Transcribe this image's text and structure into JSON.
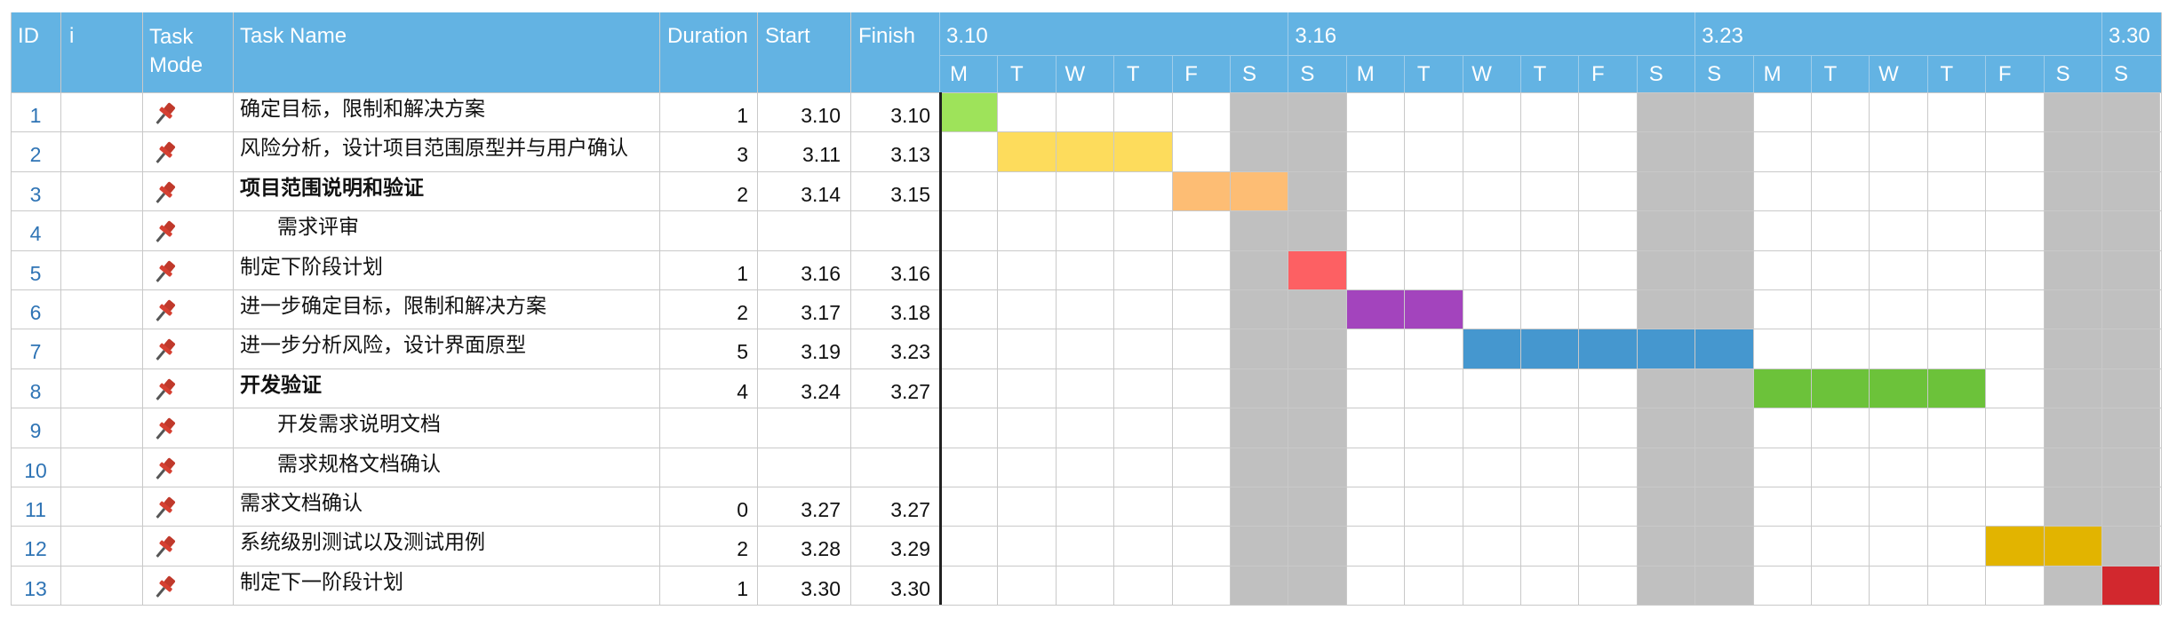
{
  "columns": {
    "id": "ID",
    "info": "i",
    "mode": "Task\nMode",
    "name": "Task Name",
    "duration": "Duration",
    "start": "Start",
    "finish": "Finish"
  },
  "weeks": [
    "3.10",
    "3.16",
    "3.23",
    "3.30"
  ],
  "days": [
    "M",
    "T",
    "W",
    "T",
    "F",
    "S",
    "S",
    "M",
    "T",
    "W",
    "T",
    "F",
    "S",
    "S",
    "M",
    "T",
    "W",
    "T",
    "F",
    "S",
    "S"
  ],
  "weekend_day_indices": [
    5,
    6,
    12,
    13,
    19,
    20
  ],
  "colors": {
    "header": "#63b3e3",
    "weekend": "#c0c0c0",
    "id_text": "#2f74b5",
    "pin": "#c0392b"
  },
  "tasks": [
    {
      "id": "1",
      "name": "确定目标，限制和解决方案",
      "indent": false,
      "bold": false,
      "duration": "1",
      "start": "3.10",
      "finish": "3.10",
      "bar_start_day": 0,
      "bar_days": 1,
      "color": "#9ee35a"
    },
    {
      "id": "2",
      "name": "风险分析，设计项目范围原型并与用户确认",
      "indent": false,
      "bold": false,
      "duration": "3",
      "start": "3.11",
      "finish": "3.13",
      "bar_start_day": 1,
      "bar_days": 3,
      "color": "#fddc5c"
    },
    {
      "id": "3",
      "name": "项目范围说明和验证",
      "indent": false,
      "bold": true,
      "duration": "2",
      "start": "3.14",
      "finish": "3.15",
      "bar_start_day": 4,
      "bar_days": 2,
      "color": "#fdbd74"
    },
    {
      "id": "4",
      "name": "需求评审",
      "indent": true,
      "bold": false,
      "duration": "",
      "start": "",
      "finish": "",
      "bar_start_day": null,
      "bar_days": 0,
      "color": ""
    },
    {
      "id": "5",
      "name": "制定下阶段计划",
      "indent": false,
      "bold": false,
      "duration": "1",
      "start": "3.16",
      "finish": "3.16",
      "bar_start_day": 6,
      "bar_days": 1,
      "color": "#fd6063"
    },
    {
      "id": "6",
      "name": "进一步确定目标，限制和解决方案",
      "indent": false,
      "bold": false,
      "duration": "2",
      "start": "3.17",
      "finish": "3.18",
      "bar_start_day": 7,
      "bar_days": 2,
      "color": "#a344bd"
    },
    {
      "id": "7",
      "name": "进一步分析风险，设计界面原型",
      "indent": false,
      "bold": false,
      "duration": "5",
      "start": "3.19",
      "finish": "3.23",
      "bar_start_day": 9,
      "bar_days": 5,
      "color": "#4597cf"
    },
    {
      "id": "8",
      "name": "开发验证",
      "indent": false,
      "bold": true,
      "duration": "4",
      "start": "3.24",
      "finish": "3.27",
      "bar_start_day": 14,
      "bar_days": 4,
      "color": "#6cc23a"
    },
    {
      "id": "9",
      "name": "开发需求说明文档",
      "indent": true,
      "bold": false,
      "duration": "",
      "start": "",
      "finish": "",
      "bar_start_day": null,
      "bar_days": 0,
      "color": ""
    },
    {
      "id": "10",
      "name": "需求规格文档确认",
      "indent": true,
      "bold": false,
      "duration": "",
      "start": "",
      "finish": "",
      "bar_start_day": null,
      "bar_days": 0,
      "color": ""
    },
    {
      "id": "11",
      "name": "需求文档确认",
      "indent": false,
      "bold": false,
      "duration": "0",
      "start": "3.27",
      "finish": "3.27",
      "bar_start_day": null,
      "bar_days": 0,
      "color": ""
    },
    {
      "id": "12",
      "name": "系统级别测试以及测试用例",
      "indent": false,
      "bold": false,
      "duration": "2",
      "start": "3.28",
      "finish": "3.29",
      "bar_start_day": 18,
      "bar_days": 2,
      "color": "#e2b400"
    },
    {
      "id": "13",
      "name": "制定下一阶段计划",
      "indent": false,
      "bold": false,
      "duration": "1",
      "start": "3.30",
      "finish": "3.30",
      "bar_start_day": 20,
      "bar_days": 1,
      "color": "#d2282e"
    }
  ]
}
